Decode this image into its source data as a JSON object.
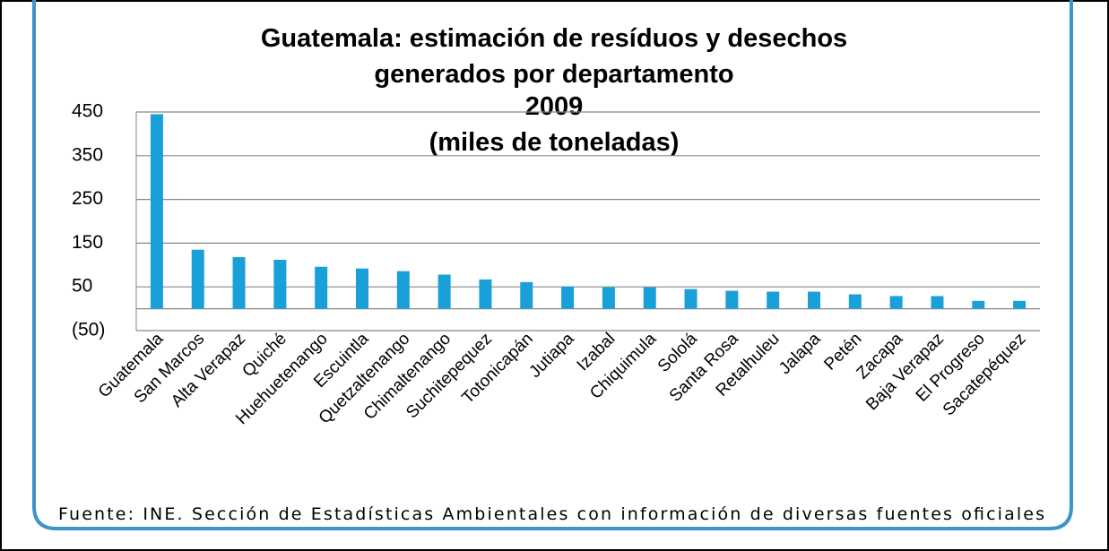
{
  "chart_data": {
    "type": "bar",
    "title": [
      "Guatemala: estimación de resíduos y desechos",
      "generados por departamento",
      "2009",
      "(miles de toneladas)"
    ],
    "source": "Fuente: INE. Sección de Estadísticas Ambientales con información de diversas fuentes oficiales",
    "categories": [
      "Guatemala",
      "San Marcos",
      "Alta Verapaz",
      "Quiché",
      "Huehuetenango",
      "Escuintla",
      "Quetzaltenango",
      "Chimaltenango",
      "Suchitepequez",
      "Totonicapán",
      "Jutiapa",
      "Izabal",
      "Chiquimula",
      "Sololá",
      "Santa Rosa",
      "Retalhuleu",
      "Jalapa",
      "Petén",
      "Zacapa",
      "Baja Verapaz",
      "El Progreso",
      "Sacatepéquez"
    ],
    "values": [
      445,
      135,
      118,
      112,
      96,
      92,
      86,
      78,
      67,
      61,
      51,
      49,
      49,
      45,
      41,
      39,
      39,
      33,
      29,
      29,
      18,
      18
    ],
    "color": "#1aa0d8",
    "ylim": [
      -50,
      450
    ],
    "yticks": [
      {
        "value": -50,
        "label": "(50)"
      },
      50,
      150,
      250,
      350,
      450
    ],
    "grid": true
  }
}
